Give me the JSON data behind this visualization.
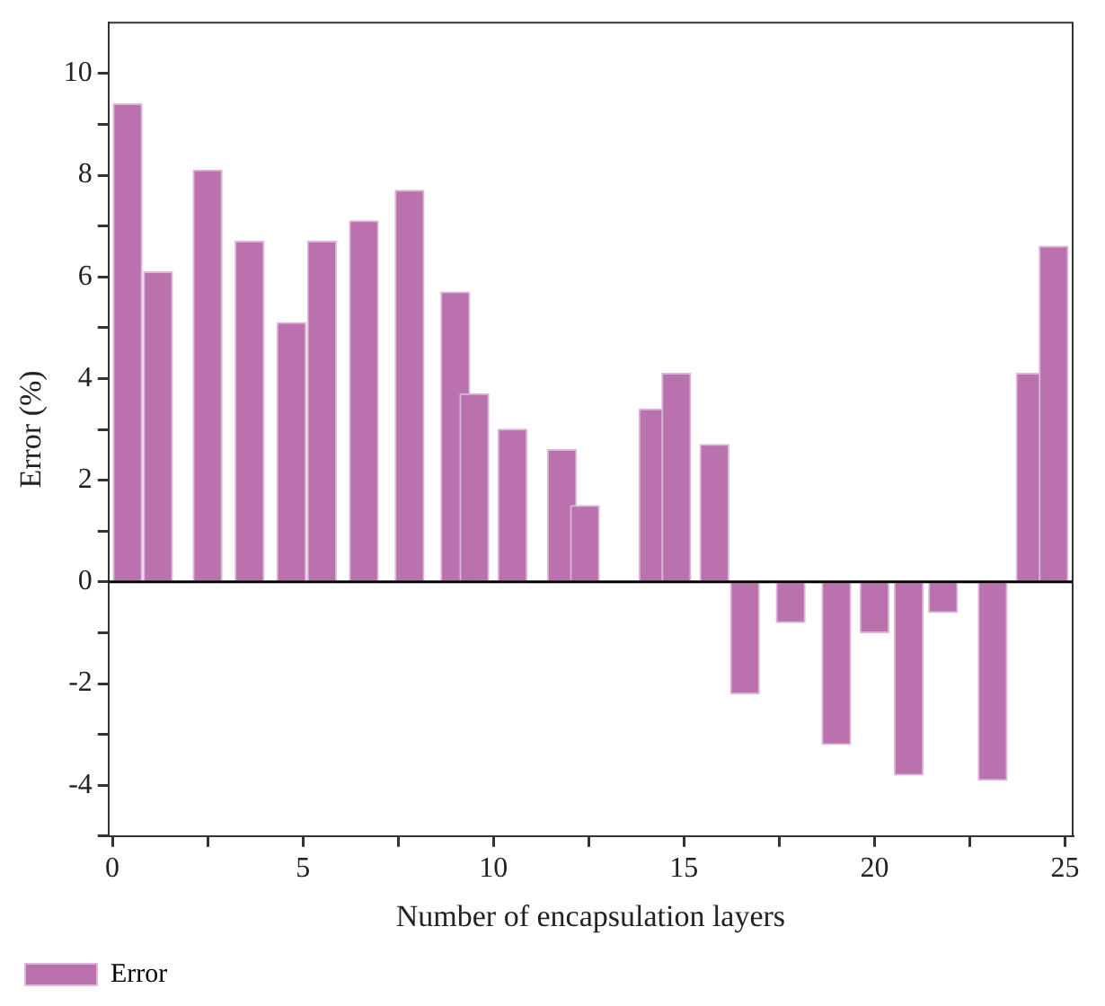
{
  "chart_data": {
    "type": "bar",
    "xlabel": "Number of encapsulation layers",
    "ylabel": "Error (%)",
    "x": [
      0.4,
      1.2,
      2.5,
      3.6,
      4.7,
      5.5,
      6.6,
      7.8,
      9.0,
      9.5,
      10.5,
      11.8,
      12.4,
      14.2,
      14.8,
      15.8,
      16.6,
      17.8,
      19.0,
      20.0,
      20.9,
      21.8,
      23.1,
      24.1,
      24.7
    ],
    "series": [
      {
        "name": "Error",
        "color": "#b972ad",
        "values": [
          9.4,
          6.1,
          8.1,
          6.7,
          5.1,
          6.7,
          7.1,
          7.7,
          5.7,
          3.7,
          3.0,
          2.6,
          1.5,
          3.4,
          4.1,
          2.7,
          -2.2,
          -0.8,
          -3.2,
          -1.0,
          -3.8,
          -0.6,
          -3.9,
          4.1,
          6.6
        ]
      }
    ],
    "xlim": [
      -0.1,
      25.2
    ],
    "xticks": [
      0,
      {
        "value": 2.5,
        "label": null
      },
      5,
      {
        "value": 7.5,
        "label": null
      },
      10,
      {
        "value": 12.5,
        "label": null
      },
      15,
      {
        "value": 17.5,
        "label": null
      },
      20,
      {
        "value": 22.5,
        "label": null
      },
      25
    ],
    "ylim": [
      -5,
      11
    ],
    "yticks": [
      {
        "value": -5,
        "label": null
      },
      -4,
      {
        "value": -3,
        "label": null
      },
      -2,
      {
        "value": -1,
        "label": null
      },
      0,
      {
        "value": 1,
        "label": null
      },
      2,
      {
        "value": 3,
        "label": null
      },
      4,
      {
        "value": 5,
        "label": null
      },
      6,
      {
        "value": 7,
        "label": null
      },
      8,
      {
        "value": 9,
        "label": null
      },
      10
    ],
    "ref_lines": [
      {
        "axis": "y",
        "value": 0,
        "color": "#000000"
      }
    ],
    "grid": false,
    "legend": "bottom left"
  }
}
